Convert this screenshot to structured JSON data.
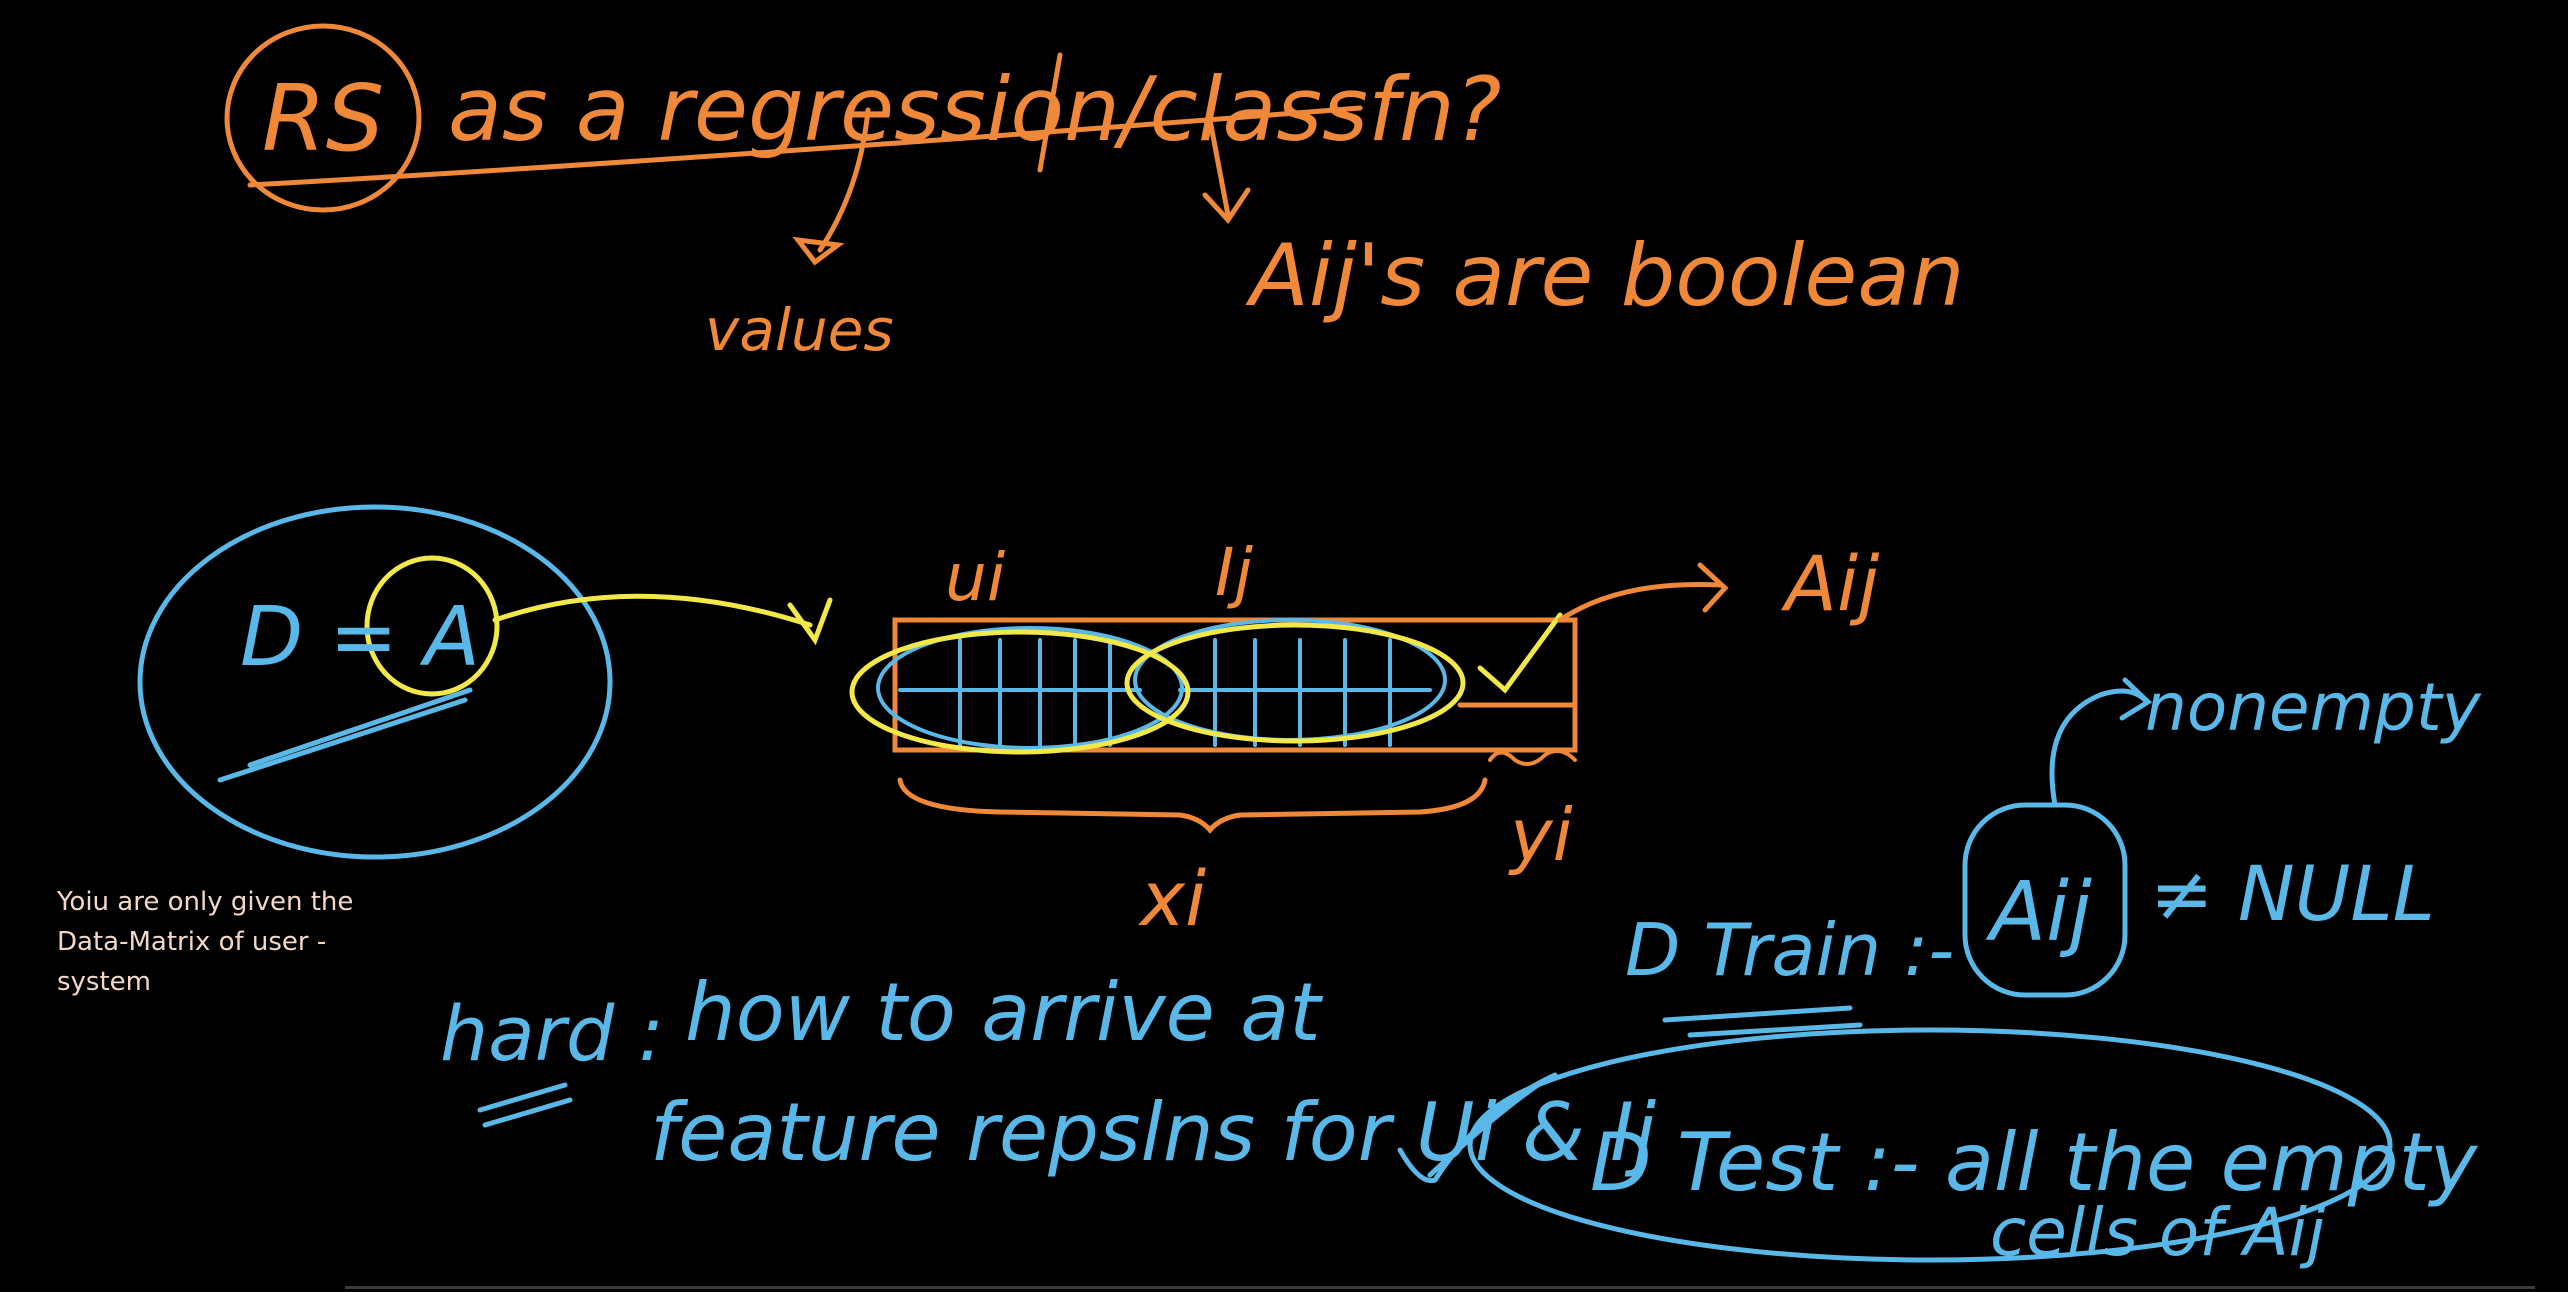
{
  "colors": {
    "background": "#000000",
    "orange": "#f0883a",
    "blue": "#5ab8e8",
    "yellow": "#f2e84a",
    "note_text": "#f3d8c8"
  },
  "board": {
    "title": {
      "rs": "RS",
      "rest": "as a regression/classfn?"
    },
    "branches": {
      "values_label": "values",
      "boolean_label": "Aij's are boolean"
    },
    "matrix_diagram": {
      "dataset_label": "D = A",
      "ui_label": "ui",
      "ij_label": "Ij",
      "aij_label": "Aij",
      "yi_label": "yi",
      "xi_label": "xi"
    },
    "splits": {
      "nonempty_label": "nonempty",
      "train_lhs": "D Train :-",
      "train_aij": "Aij",
      "train_rhs": "≠ NULL",
      "test_line1": "D Test :- all the empty",
      "test_line2": "cells of Aij"
    },
    "hard_note": {
      "label": "hard :",
      "line1": "how to arrive at",
      "line2": "feature repslns for Ui & Ij"
    }
  },
  "caption": "Yoiu are only given the\nData-Matrix of user -\nsystem",
  "icons": [
    "check-mark-icon",
    "arrow-icon"
  ]
}
